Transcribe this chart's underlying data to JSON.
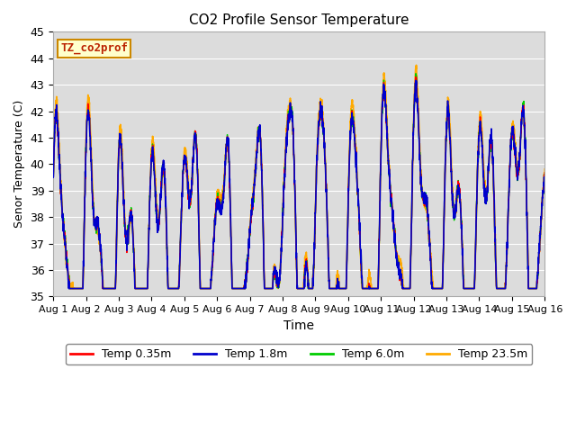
{
  "title": "CO2 Profile Sensor Temperature",
  "xlabel": "Time",
  "ylabel": "Senor Temperature (C)",
  "ylim": [
    35.0,
    45.0
  ],
  "yticks": [
    35.0,
    36.0,
    37.0,
    38.0,
    39.0,
    40.0,
    41.0,
    42.0,
    43.0,
    44.0,
    45.0
  ],
  "bg_color": "#dcdcdc",
  "label_box_text": "TZ_co2prof",
  "label_box_bg": "#ffffcc",
  "label_box_edge": "#cc8800",
  "legend_entries": [
    "Temp 0.35m",
    "Temp 1.8m",
    "Temp 6.0m",
    "Temp 23.5m"
  ],
  "line_colors": [
    "#ff0000",
    "#0000cc",
    "#00cc00",
    "#ffaa00"
  ],
  "xtick_labels": [
    "Aug 1",
    "Aug 2",
    "Aug 3",
    "Aug 4",
    "Aug 5",
    "Aug 6",
    "Aug 7",
    "Aug 8",
    "Aug 9",
    "Aug 10",
    "Aug 11",
    "Aug 12",
    "Aug 13",
    "Aug 14",
    "Aug 15",
    "Aug 16"
  ],
  "days": 15,
  "points_per_day": 200
}
